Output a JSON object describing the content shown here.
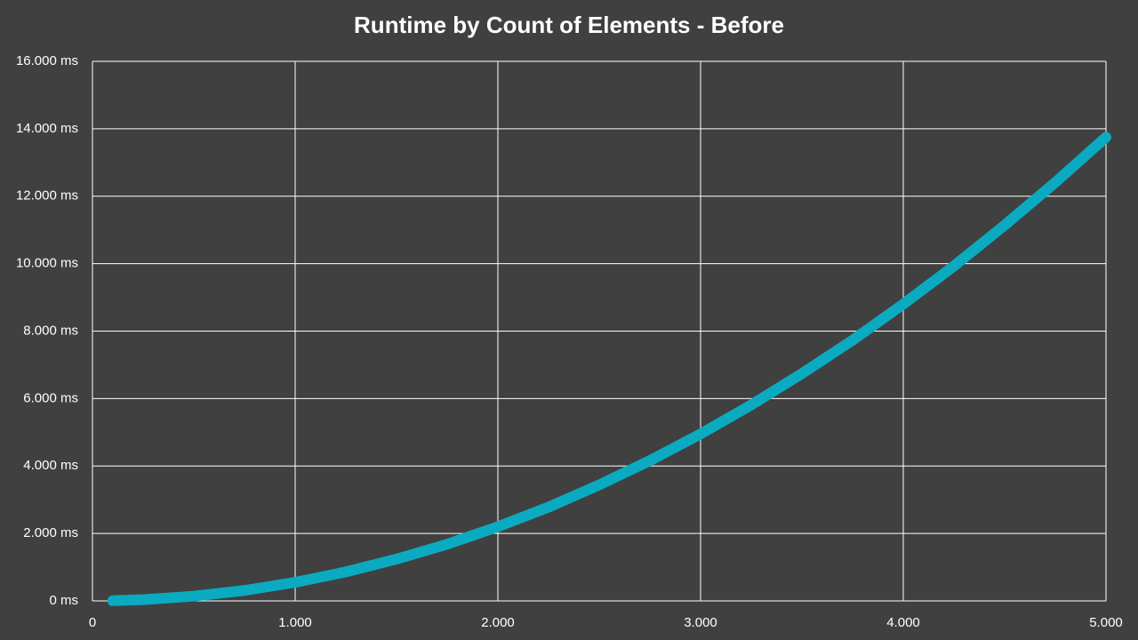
{
  "chart_data": {
    "type": "line",
    "title": "Runtime by Count of Elements - Before",
    "x": [
      100,
      250,
      500,
      750,
      1000,
      1250,
      1500,
      1750,
      2000,
      2250,
      2500,
      2750,
      3000,
      3250,
      3500,
      3750,
      4000,
      4250,
      4500,
      4750,
      5000
    ],
    "values": [
      5,
      35,
      140,
      310,
      550,
      860,
      1240,
      1680,
      2200,
      2780,
      3440,
      4160,
      4950,
      5810,
      6740,
      7730,
      8800,
      9930,
      11140,
      12410,
      13750
    ],
    "color": "#0aabc1",
    "xlim": [
      0,
      5000
    ],
    "xticks": [
      0,
      {
        "value": 1000,
        "label": "1.000"
      },
      {
        "value": 2000,
        "label": "2.000"
      },
      {
        "value": 3000,
        "label": "3.000"
      },
      {
        "value": 4000,
        "label": "4.000"
      },
      {
        "value": 5000,
        "label": "5.000"
      }
    ],
    "ylim": [
      0,
      16000
    ],
    "yticks": [
      {
        "value": 0,
        "label": "0 ms"
      },
      {
        "value": 2000,
        "label": "2.000 ms"
      },
      {
        "value": 4000,
        "label": "4.000 ms"
      },
      {
        "value": 6000,
        "label": "6.000 ms"
      },
      {
        "value": 8000,
        "label": "8.000 ms"
      },
      {
        "value": 10000,
        "label": "10.000 ms"
      },
      {
        "value": 12000,
        "label": "12.000 ms"
      },
      {
        "value": 14000,
        "label": "14.000 ms"
      },
      {
        "value": 16000,
        "label": "16.000 ms"
      }
    ],
    "grid": true
  }
}
